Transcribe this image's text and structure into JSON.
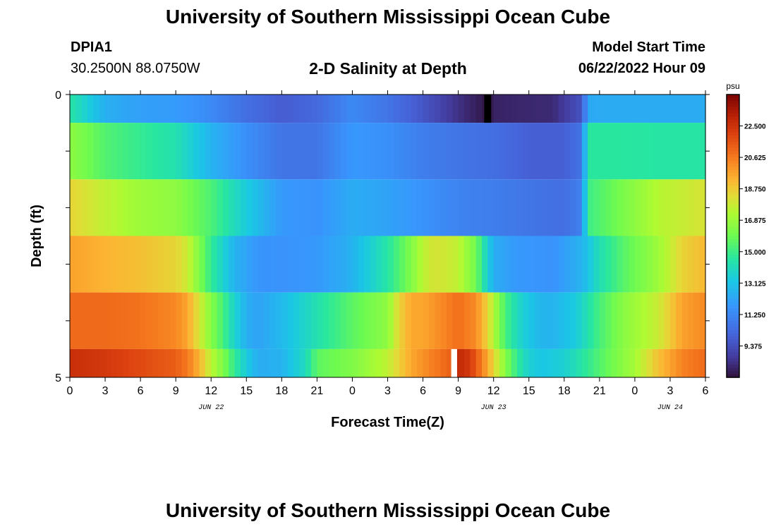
{
  "header": {
    "title": "University of Southern Mississippi Ocean Cube",
    "station_id": "DPIA1",
    "station_coords": "30.2500N  88.0750W",
    "model_start_label": "Model Start Time",
    "model_start_value": "06/22/2022 Hour 09"
  },
  "footer": {
    "title": "University of Southern Mississippi Ocean Cube"
  },
  "chart_data": {
    "type": "heatmap",
    "title": "2-D Salinity at Depth",
    "xlabel": "Forecast Time(Z)",
    "ylabel": "Depth (ft)",
    "x_tick_labels": [
      "0",
      "3",
      "6",
      "9",
      "12",
      "15",
      "18",
      "21",
      "0",
      "3",
      "6",
      "9",
      "12",
      "15",
      "18",
      "21",
      "0",
      "3",
      "6"
    ],
    "x_date_labels": [
      {
        "label": "JUN 22",
        "tick_index": 4
      },
      {
        "label": "JUN 23",
        "tick_index": 12
      },
      {
        "label": "JUN 24",
        "tick_index": 17
      }
    ],
    "y_tick_labels": [
      "0",
      "5"
    ],
    "ylim": [
      0,
      5
    ],
    "x_hours_span": [
      0,
      54
    ],
    "colorbar": {
      "unit": "psu",
      "min": 7.5,
      "max": 24.375,
      "tick_labels": [
        "22.500",
        "20.625",
        "18.750",
        "16.875",
        "15.000",
        "13.125",
        "11.250",
        "9.375"
      ],
      "tick_values": [
        22.5,
        20.625,
        18.75,
        16.875,
        15.0,
        13.125,
        11.25,
        9.375
      ]
    },
    "rows": [
      {
        "depth_range": [
          0,
          0.5
        ],
        "hours": [
          0,
          3,
          6,
          9,
          12,
          15,
          18,
          21,
          24,
          27,
          30,
          33,
          35.5,
          36,
          38,
          41,
          43.5,
          44,
          47,
          50,
          54
        ],
        "values": [
          14.5,
          12.5,
          12.0,
          11.9,
          11.3,
          10.4,
          9.8,
          10.2,
          11.3,
          10.6,
          9.6,
          8.4,
          7.6,
          8.0,
          8.1,
          8.2,
          9.5,
          12.3,
          12.4,
          12.4,
          12.4
        ]
      },
      {
        "depth_range": [
          0.5,
          1.5
        ],
        "hours": [
          0,
          3,
          6,
          9,
          12,
          15,
          18,
          21,
          24,
          27,
          30,
          33,
          36,
          39,
          42,
          43.5,
          44,
          47,
          50,
          54
        ],
        "values": [
          16.6,
          15.4,
          14.8,
          14.3,
          12.6,
          11.5,
          10.6,
          10.6,
          11.8,
          11.5,
          10.9,
          10.6,
          10.4,
          9.9,
          9.9,
          10.6,
          14.6,
          14.6,
          14.5,
          14.5
        ]
      },
      {
        "depth_range": [
          1.5,
          2.5
        ],
        "hours": [
          0,
          3,
          6,
          9,
          12,
          15,
          18,
          21,
          24,
          27,
          30,
          33,
          36,
          39,
          42,
          43.5,
          44,
          47,
          50,
          54
        ],
        "values": [
          18.5,
          17.6,
          16.9,
          16.6,
          15.3,
          13.4,
          11.8,
          11.6,
          12.4,
          12.1,
          11.6,
          11.1,
          10.9,
          10.6,
          10.4,
          11.0,
          15.0,
          16.2,
          17.4,
          18.1
        ]
      },
      {
        "depth_range": [
          2.5,
          3.5
        ],
        "hours": [
          0,
          3,
          6,
          9,
          10,
          12,
          14,
          16,
          18,
          21,
          24,
          27,
          29,
          30,
          31,
          33,
          34.5,
          36,
          38,
          41,
          43.5,
          45,
          47,
          50,
          52,
          54
        ],
        "values": [
          19.7,
          19.3,
          19.0,
          18.5,
          17.8,
          14.8,
          12.6,
          11.7,
          11.6,
          11.8,
          12.6,
          14.5,
          16.3,
          17.5,
          18.1,
          17.6,
          16.0,
          12.4,
          11.8,
          11.6,
          12.6,
          14.2,
          15.5,
          16.9,
          18.5,
          19.2
        ]
      },
      {
        "depth_range": [
          3.5,
          4.5
        ],
        "hours": [
          0,
          3,
          6,
          9,
          10,
          11,
          12,
          13,
          14,
          15,
          16,
          18,
          21,
          24,
          27,
          28,
          29,
          30,
          33,
          34.5,
          35.5,
          36,
          37,
          38,
          39,
          40,
          41,
          43,
          45,
          47,
          50,
          52,
          54
        ],
        "values": [
          21.0,
          21.0,
          20.8,
          20.3,
          19.6,
          18.0,
          16.4,
          15.2,
          13.7,
          12.5,
          12.1,
          12.8,
          14.3,
          15.6,
          16.6,
          18.5,
          19.6,
          19.6,
          20.9,
          20.2,
          18.5,
          17.3,
          15.2,
          14.0,
          13.2,
          12.7,
          12.6,
          13.4,
          15.2,
          16.5,
          17.8,
          19.7,
          20.3
        ]
      },
      {
        "depth_range": [
          4.5,
          5
        ],
        "hours": [
          0,
          3,
          6,
          9,
          10,
          11,
          12,
          13,
          14,
          15,
          16,
          18,
          20,
          21,
          24,
          27,
          29,
          31,
          32.5,
          32.6,
          33,
          34,
          35,
          36,
          37,
          38,
          39,
          40,
          42,
          44,
          46,
          48,
          50,
          52,
          54
        ],
        "values": [
          22.6,
          22.3,
          21.8,
          21.3,
          20.6,
          19.3,
          17.5,
          16.3,
          14.8,
          13.4,
          12.4,
          12.6,
          14.0,
          15.6,
          16.3,
          17.6,
          19.6,
          20.6,
          21.3,
          22.8,
          22.8,
          22.3,
          20.5,
          18.5,
          16.4,
          14.8,
          13.6,
          13.2,
          13.6,
          14.8,
          16.0,
          17.1,
          19.0,
          20.4,
          21.0
        ]
      }
    ],
    "missing_cells": [
      {
        "color": "#000000",
        "row_index": 0,
        "hour_range": [
          35.2,
          35.8
        ]
      },
      {
        "color": "#ffffff",
        "row_index": 5,
        "hour_range": [
          32.4,
          32.9
        ]
      }
    ]
  }
}
